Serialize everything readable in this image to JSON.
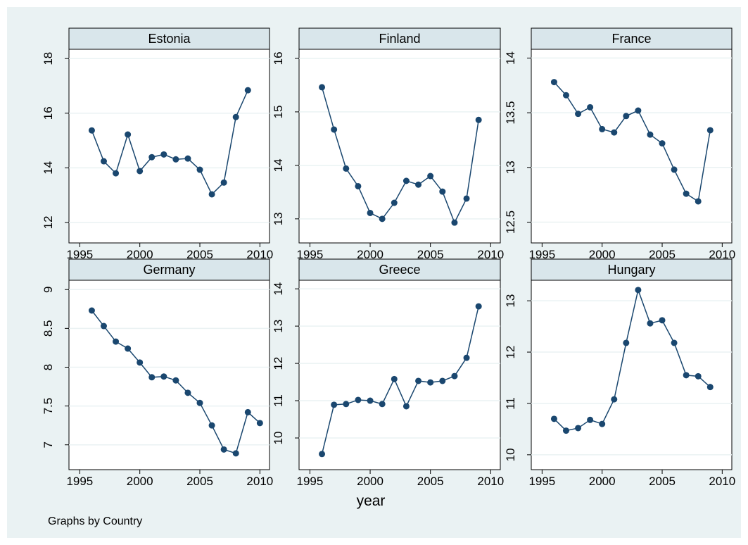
{
  "chart_data": [
    {
      "type": "line",
      "title": "Estonia",
      "color": "#1a476f",
      "grid": true,
      "x": [
        1996,
        1997,
        1998,
        1999,
        2000,
        2001,
        2002,
        2003,
        2004,
        2005,
        2006,
        2007,
        2008,
        2009
      ],
      "values": [
        15.37,
        14.24,
        13.8,
        15.22,
        13.88,
        14.39,
        14.49,
        14.31,
        14.34,
        13.93,
        13.03,
        13.46,
        15.86,
        16.84
      ],
      "xlim": [
        1994.1,
        2010.8
      ],
      "xticks": [
        1995,
        2000,
        2005,
        2010
      ],
      "ylim": [
        11.25,
        18.34
      ],
      "yticks": [
        12,
        14,
        16,
        18
      ]
    },
    {
      "type": "line",
      "title": "Finland",
      "color": "#1a476f",
      "grid": true,
      "x": [
        1996,
        1997,
        1998,
        1999,
        2000,
        2001,
        2002,
        2003,
        2004,
        2005,
        2006,
        2007,
        2008,
        2009
      ],
      "values": [
        15.46,
        14.67,
        13.94,
        13.61,
        13.11,
        13.0,
        13.3,
        13.71,
        13.64,
        13.8,
        13.51,
        12.93,
        13.38,
        14.85
      ],
      "xlim": [
        1994.1,
        2010.8
      ],
      "xticks": [
        1995,
        2000,
        2005,
        2010
      ],
      "ylim": [
        12.55,
        16.17
      ],
      "yticks": [
        13,
        14,
        15,
        16
      ]
    },
    {
      "type": "line",
      "title": "France",
      "color": "#1a476f",
      "grid": true,
      "x": [
        1996,
        1997,
        1998,
        1999,
        2000,
        2001,
        2002,
        2003,
        2004,
        2005,
        2006,
        2007,
        2008,
        2009
      ],
      "values": [
        13.78,
        13.66,
        13.49,
        13.55,
        13.35,
        13.32,
        13.47,
        13.52,
        13.3,
        13.22,
        12.98,
        12.76,
        12.69,
        13.34
      ],
      "xlim": [
        1994.1,
        2010.8
      ],
      "xticks": [
        1995,
        2000,
        2005,
        2010
      ],
      "ylim": [
        12.31,
        14.08
      ],
      "yticks": [
        12.5,
        13,
        13.5,
        14
      ]
    },
    {
      "type": "line",
      "title": "Germany",
      "color": "#1a476f",
      "grid": true,
      "x": [
        1996,
        1997,
        1998,
        1999,
        2000,
        2001,
        2002,
        2003,
        2004,
        2005,
        2006,
        2007,
        2008,
        2009,
        2010
      ],
      "values": [
        8.73,
        8.53,
        8.33,
        8.24,
        8.06,
        7.87,
        7.88,
        7.83,
        7.67,
        7.54,
        7.25,
        6.94,
        6.89,
        7.42,
        7.28
      ],
      "xlim": [
        1994.1,
        2010.8
      ],
      "xticks": [
        1995,
        2000,
        2005,
        2010
      ],
      "ylim": [
        6.68,
        9.12
      ],
      "yticks": [
        7,
        7.5,
        8,
        8.5,
        9
      ]
    },
    {
      "type": "line",
      "title": "Greece",
      "color": "#1a476f",
      "grid": true,
      "x": [
        1996,
        1997,
        1998,
        1999,
        2000,
        2001,
        2002,
        2003,
        2004,
        2005,
        2006,
        2007,
        2008,
        2009
      ],
      "values": [
        9.57,
        10.89,
        10.91,
        11.02,
        11.0,
        10.91,
        11.58,
        10.85,
        11.53,
        11.49,
        11.53,
        11.66,
        12.15,
        13.53
      ],
      "xlim": [
        1994.1,
        2010.8
      ],
      "xticks": [
        1995,
        2000,
        2005,
        2010
      ],
      "ylim": [
        9.15,
        14.23
      ],
      "yticks": [
        10,
        11,
        12,
        13,
        14
      ]
    },
    {
      "type": "line",
      "title": "Hungary",
      "color": "#1a476f",
      "grid": true,
      "x": [
        1996,
        1997,
        1998,
        1999,
        2000,
        2001,
        2002,
        2003,
        2004,
        2005,
        2006,
        2007,
        2008,
        2009
      ],
      "values": [
        10.7,
        10.47,
        10.52,
        10.68,
        10.6,
        11.08,
        12.18,
        13.21,
        12.56,
        12.62,
        12.18,
        11.55,
        11.53,
        11.32
      ],
      "xlim": [
        1994.1,
        2010.8
      ],
      "xticks": [
        1995,
        2000,
        2005,
        2010
      ],
      "ylim": [
        9.71,
        13.4
      ],
      "yticks": [
        10,
        11,
        12,
        13
      ]
    }
  ],
  "x_label": "year",
  "note": "Graphs by Country"
}
